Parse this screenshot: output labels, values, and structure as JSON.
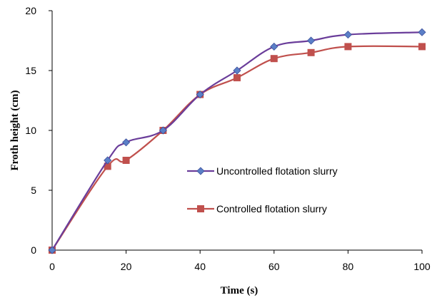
{
  "chart_data": {
    "type": "line",
    "xlabel": "Time (s)",
    "ylabel": "Froth  height (cm)",
    "xlim": [
      0,
      100
    ],
    "ylim": [
      0,
      20
    ],
    "xticks": [
      "0",
      "20",
      "40",
      "60",
      "80",
      "100"
    ],
    "yticks": [
      "0",
      "5",
      "10",
      "15",
      "20"
    ],
    "grid": false,
    "legend_position": "center-right",
    "series": [
      {
        "name": "Uncontrolled flotation slurry",
        "color": "#6a3d9a",
        "marker": "diamond",
        "marker_color": "#5b7fc7",
        "x": [
          0,
          15,
          20,
          30,
          40,
          50,
          60,
          70,
          80,
          100
        ],
        "y": [
          0,
          7.5,
          9.0,
          10.0,
          13.0,
          15.0,
          17.0,
          17.5,
          18.0,
          18.2
        ]
      },
      {
        "name": "Controlled flotation slurry",
        "color": "#c0504d",
        "marker": "square",
        "marker_color": "#c0504d",
        "x": [
          0,
          15,
          20,
          30,
          40,
          50,
          60,
          70,
          80,
          100
        ],
        "y": [
          0,
          7.0,
          7.5,
          10.0,
          13.0,
          14.4,
          16.0,
          16.5,
          17.0,
          17.0
        ]
      }
    ]
  }
}
